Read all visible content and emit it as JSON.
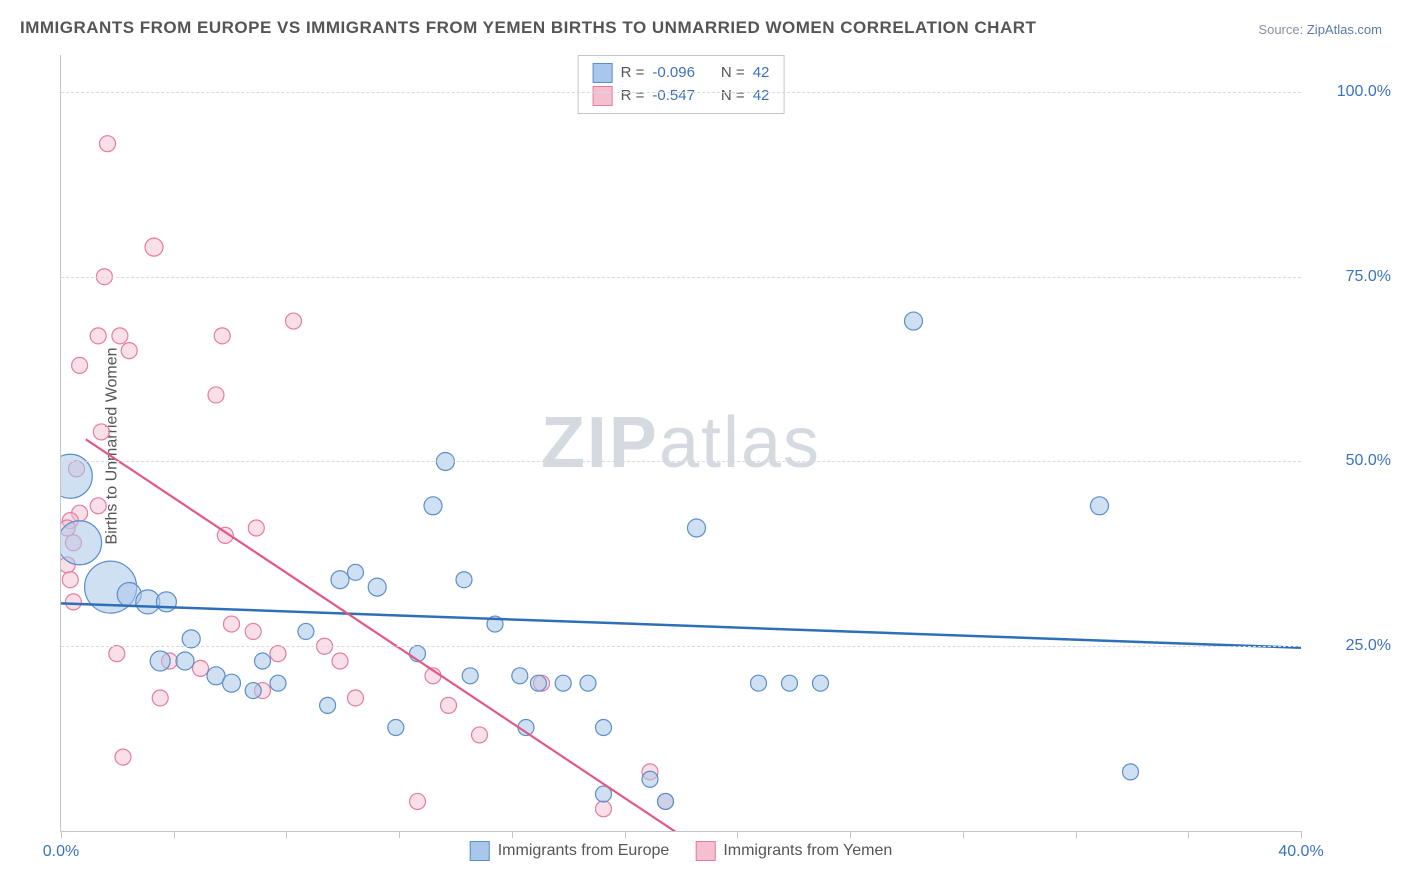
{
  "title": "IMMIGRANTS FROM EUROPE VS IMMIGRANTS FROM YEMEN BIRTHS TO UNMARRIED WOMEN CORRELATION CHART",
  "source_label": "Source:",
  "source_value": "ZipAtlas.com",
  "y_axis_label": "Births to Unmarried Women",
  "watermark_bold": "ZIP",
  "watermark_rest": "atlas",
  "chart": {
    "type": "scatter",
    "background_color": "#ffffff",
    "grid_color": "#d6dae1",
    "axis_color": "#bfc6d0",
    "tick_color": "#3b73ba",
    "label_color": "#555555",
    "title_fontsize": 17,
    "tick_fontsize": 16,
    "label_fontsize": 16,
    "xlim": [
      0,
      40
    ],
    "ylim": [
      0,
      105
    ],
    "y_ticks": [
      25,
      50,
      75,
      100
    ],
    "y_tick_labels": [
      "25.0%",
      "50.0%",
      "75.0%",
      "100.0%"
    ],
    "x_minor_ticks": [
      0,
      3.64,
      7.27,
      10.91,
      14.55,
      18.18,
      21.82,
      25.45,
      29.09,
      32.73,
      36.36,
      40
    ],
    "x_tick_labels": {
      "0": "0.0%",
      "40": "40.0%"
    }
  },
  "stats_legend": {
    "rows": [
      {
        "swatch_fill": "#a9c7ea",
        "swatch_border": "#5b8fc9",
        "r_label": "R =",
        "r_value": "-0.096",
        "n_label": "N =",
        "n_value": "42"
      },
      {
        "swatch_fill": "#f4c0cf",
        "swatch_border": "#e67ca0",
        "r_label": "R =",
        "r_value": "-0.547",
        "n_label": "N =",
        "n_value": "42"
      }
    ]
  },
  "series_legend": {
    "items": [
      {
        "swatch_fill": "#a9c7ea",
        "swatch_border": "#5b8fc9",
        "label": "Immigrants from Europe"
      },
      {
        "swatch_fill": "#f4c0cf",
        "swatch_border": "#e67ca0",
        "label": "Immigrants from Yemen"
      }
    ]
  },
  "series": [
    {
      "name": "europe",
      "fill": "#a9c7ea",
      "stroke": "#5b8fc9",
      "fill_opacity": 0.55,
      "stroke_width": 1.2,
      "trend_color": "#2f6fb8",
      "trend_width": 2.5,
      "trend": {
        "x1": 0,
        "y1": 30.8,
        "x2": 40,
        "y2": 24.8
      },
      "points": [
        {
          "x": 0.3,
          "y": 48,
          "r": 22
        },
        {
          "x": 0.6,
          "y": 39,
          "r": 22
        },
        {
          "x": 1.6,
          "y": 33,
          "r": 26
        },
        {
          "x": 2.2,
          "y": 32,
          "r": 12
        },
        {
          "x": 2.8,
          "y": 31,
          "r": 12
        },
        {
          "x": 3.4,
          "y": 31,
          "r": 10
        },
        {
          "x": 3.2,
          "y": 23,
          "r": 10
        },
        {
          "x": 4.0,
          "y": 23,
          "r": 9
        },
        {
          "x": 4.2,
          "y": 26,
          "r": 9
        },
        {
          "x": 5.0,
          "y": 21,
          "r": 9
        },
        {
          "x": 5.5,
          "y": 20,
          "r": 9
        },
        {
          "x": 6.2,
          "y": 19,
          "r": 8
        },
        {
          "x": 6.5,
          "y": 23,
          "r": 8
        },
        {
          "x": 7.0,
          "y": 20,
          "r": 8
        },
        {
          "x": 7.9,
          "y": 27,
          "r": 8
        },
        {
          "x": 8.6,
          "y": 17,
          "r": 8
        },
        {
          "x": 9.0,
          "y": 34,
          "r": 9
        },
        {
          "x": 9.5,
          "y": 35,
          "r": 8
        },
        {
          "x": 10.2,
          "y": 33,
          "r": 9
        },
        {
          "x": 10.8,
          "y": 14,
          "r": 8
        },
        {
          "x": 11.5,
          "y": 24,
          "r": 8
        },
        {
          "x": 12.4,
          "y": 50,
          "r": 9
        },
        {
          "x": 13.0,
          "y": 34,
          "r": 8
        },
        {
          "x": 13.2,
          "y": 21,
          "r": 8
        },
        {
          "x": 12.0,
          "y": 44,
          "r": 9
        },
        {
          "x": 14.0,
          "y": 28,
          "r": 8
        },
        {
          "x": 14.8,
          "y": 21,
          "r": 8
        },
        {
          "x": 15.0,
          "y": 14,
          "r": 8
        },
        {
          "x": 15.4,
          "y": 20,
          "r": 8
        },
        {
          "x": 16.2,
          "y": 20,
          "r": 8
        },
        {
          "x": 17.0,
          "y": 20,
          "r": 8
        },
        {
          "x": 17.5,
          "y": 14,
          "r": 8
        },
        {
          "x": 17.5,
          "y": 5,
          "r": 8
        },
        {
          "x": 19.0,
          "y": 7,
          "r": 8
        },
        {
          "x": 19.5,
          "y": 4,
          "r": 8
        },
        {
          "x": 20.5,
          "y": 41,
          "r": 9
        },
        {
          "x": 22.5,
          "y": 20,
          "r": 8
        },
        {
          "x": 23.5,
          "y": 20,
          "r": 8
        },
        {
          "x": 24.5,
          "y": 20,
          "r": 8
        },
        {
          "x": 27.5,
          "y": 69,
          "r": 9
        },
        {
          "x": 33.5,
          "y": 44,
          "r": 9
        },
        {
          "x": 34.5,
          "y": 8,
          "r": 8
        }
      ]
    },
    {
      "name": "yemen",
      "fill": "#f4c0cf",
      "stroke": "#e67ca0",
      "fill_opacity": 0.5,
      "stroke_width": 1.2,
      "trend_color": "#e05a86",
      "trend_width": 2.2,
      "trend": {
        "x1": 0.8,
        "y1": 53,
        "x2": 20.5,
        "y2": -2
      },
      "points": [
        {
          "x": 1.5,
          "y": 93,
          "r": 8
        },
        {
          "x": 3.0,
          "y": 79,
          "r": 9
        },
        {
          "x": 1.4,
          "y": 75,
          "r": 8
        },
        {
          "x": 1.2,
          "y": 67,
          "r": 8
        },
        {
          "x": 1.9,
          "y": 67,
          "r": 8
        },
        {
          "x": 2.2,
          "y": 65,
          "r": 8
        },
        {
          "x": 0.6,
          "y": 63,
          "r": 8
        },
        {
          "x": 5.2,
          "y": 67,
          "r": 8
        },
        {
          "x": 7.5,
          "y": 69,
          "r": 8
        },
        {
          "x": 5.0,
          "y": 59,
          "r": 8
        },
        {
          "x": 1.3,
          "y": 54,
          "r": 8
        },
        {
          "x": 0.5,
          "y": 49,
          "r": 8
        },
        {
          "x": 0.6,
          "y": 43,
          "r": 8
        },
        {
          "x": 1.2,
          "y": 44,
          "r": 8
        },
        {
          "x": 0.3,
          "y": 42,
          "r": 8
        },
        {
          "x": 0.2,
          "y": 41,
          "r": 8
        },
        {
          "x": 0.4,
          "y": 39,
          "r": 8
        },
        {
          "x": 0.2,
          "y": 36,
          "r": 8
        },
        {
          "x": 0.3,
          "y": 34,
          "r": 8
        },
        {
          "x": 0.4,
          "y": 31,
          "r": 8
        },
        {
          "x": 5.3,
          "y": 40,
          "r": 8
        },
        {
          "x": 1.8,
          "y": 24,
          "r": 8
        },
        {
          "x": 3.5,
          "y": 23,
          "r": 8
        },
        {
          "x": 3.2,
          "y": 18,
          "r": 8
        },
        {
          "x": 4.5,
          "y": 22,
          "r": 8
        },
        {
          "x": 5.5,
          "y": 28,
          "r": 8
        },
        {
          "x": 6.3,
          "y": 41,
          "r": 8
        },
        {
          "x": 6.2,
          "y": 27,
          "r": 8
        },
        {
          "x": 6.5,
          "y": 19,
          "r": 8
        },
        {
          "x": 7.0,
          "y": 24,
          "r": 8
        },
        {
          "x": 8.5,
          "y": 25,
          "r": 8
        },
        {
          "x": 9.0,
          "y": 23,
          "r": 8
        },
        {
          "x": 9.5,
          "y": 18,
          "r": 8
        },
        {
          "x": 11.5,
          "y": 4,
          "r": 8
        },
        {
          "x": 12.0,
          "y": 21,
          "r": 8
        },
        {
          "x": 12.5,
          "y": 17,
          "r": 8
        },
        {
          "x": 13.5,
          "y": 13,
          "r": 8
        },
        {
          "x": 15.5,
          "y": 20,
          "r": 8
        },
        {
          "x": 17.5,
          "y": 3,
          "r": 8
        },
        {
          "x": 19.0,
          "y": 8,
          "r": 8
        },
        {
          "x": 19.5,
          "y": 4,
          "r": 8
        },
        {
          "x": 2.0,
          "y": 10,
          "r": 8
        }
      ]
    }
  ]
}
